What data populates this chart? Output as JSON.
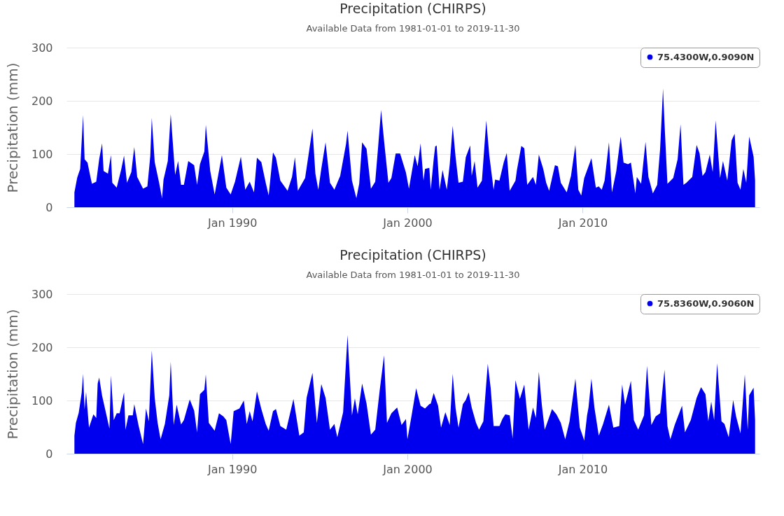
{
  "chart_data": [
    {
      "type": "area",
      "title": "Precipitation (CHIRPS)",
      "subtitle": "Available Data from 1981-01-01 to 2019-11-30",
      "ylabel": "Precipitation (mm)",
      "xlim": [
        "1980-07-20",
        "2020-02-01"
      ],
      "xticks": [
        {
          "value": "1990-01",
          "label": "Jan 1990"
        },
        {
          "value": "2000-01",
          "label": "Jan 2000"
        },
        {
          "value": "2010-01",
          "label": "Jan 2010"
        }
      ],
      "ylim": [
        0,
        300
      ],
      "yticks": [
        0,
        100,
        200,
        300
      ],
      "grid": "y",
      "legend": "top right",
      "series": [
        {
          "name": "75.4300W,0.9090N",
          "color": "#0000ee",
          "x": [
            "1981-01",
            "1981-03",
            "1981-05",
            "1981-07",
            "1981-08",
            "1981-10",
            "1981-12",
            "1982-01",
            "1982-04",
            "1982-06",
            "1982-08",
            "1982-09",
            "1982-12",
            "1983-02",
            "1983-03",
            "1983-06",
            "1983-09",
            "1983-11",
            "1984-01",
            "1984-04",
            "1984-06",
            "1984-08",
            "1984-12",
            "1985-03",
            "1985-05",
            "1985-06",
            "1985-08",
            "1985-11",
            "1986-01",
            "1986-02",
            "1986-05",
            "1986-07",
            "1986-10",
            "1986-12",
            "1987-02",
            "1987-04",
            "1987-07",
            "1987-11",
            "1988-01",
            "1988-03",
            "1988-06",
            "1988-07",
            "1988-10",
            "1989-01",
            "1989-04",
            "1989-06",
            "1989-09",
            "1989-12",
            "1990-03",
            "1990-07",
            "1990-10",
            "1991-01",
            "1991-04",
            "1991-06",
            "1991-09",
            "1991-12",
            "1992-02",
            "1992-05",
            "1992-07",
            "1992-10",
            "1993-03",
            "1993-06",
            "1993-08",
            "1993-10",
            "1994-03",
            "1994-08",
            "1994-10",
            "1994-12",
            "1995-02",
            "1995-05",
            "1995-08",
            "1995-11",
            "1996-03",
            "1996-07",
            "1996-08",
            "1996-11",
            "1997-02",
            "1997-04",
            "1997-06",
            "1997-09",
            "1997-12",
            "1998-03",
            "1998-05",
            "1998-07",
            "1998-09",
            "1998-12",
            "1999-02",
            "1999-05",
            "1999-08",
            "1999-12",
            "2000-02",
            "2000-04",
            "2000-06",
            "2000-08",
            "2000-10",
            "2000-12",
            "2001-01",
            "2001-04",
            "2001-05",
            "2001-07",
            "2001-08",
            "2001-09",
            "2001-11",
            "2002-01",
            "2002-04",
            "2002-06",
            "2002-08",
            "2002-10",
            "2002-12",
            "2003-03",
            "2003-05",
            "2003-08",
            "2003-09",
            "2003-11",
            "2004-01",
            "2004-04",
            "2004-07",
            "2004-09",
            "2004-12",
            "2005-01",
            "2005-04",
            "2005-07",
            "2005-09",
            "2005-11",
            "2006-03",
            "2006-04",
            "2006-07",
            "2006-09",
            "2006-11",
            "2007-03",
            "2007-05",
            "2007-07",
            "2007-10",
            "2007-12",
            "2008-02",
            "2008-06",
            "2008-08",
            "2008-10",
            "2009-02",
            "2009-05",
            "2009-08",
            "2009-10",
            "2009-12",
            "2010-02",
            "2010-07",
            "2010-10",
            "2010-12",
            "2011-02",
            "2011-04",
            "2011-07",
            "2011-09",
            "2011-12",
            "2012-03",
            "2012-05",
            "2012-08",
            "2012-10",
            "2013-01",
            "2013-02",
            "2013-05",
            "2013-08",
            "2013-10",
            "2014-01",
            "2014-04",
            "2014-06",
            "2014-08",
            "2014-09",
            "2014-11",
            "2015-03",
            "2015-06",
            "2015-08",
            "2015-10",
            "2015-12",
            "2016-04",
            "2016-07",
            "2016-09",
            "2016-11",
            "2017-01",
            "2017-04",
            "2017-06",
            "2017-08",
            "2017-11",
            "2018-01",
            "2018-04",
            "2018-07",
            "2018-09",
            "2018-11",
            "2019-01",
            "2019-03",
            "2019-05",
            "2019-07",
            "2019-10",
            "2019-11"
          ],
          "values": [
            28,
            56,
            72,
            173,
            90,
            84,
            57,
            44,
            48,
            90,
            120,
            68,
            63,
            98,
            46,
            37,
            70,
            97,
            46,
            66,
            113,
            57,
            35,
            39,
            96,
            168,
            85,
            46,
            17,
            52,
            87,
            175,
            61,
            87,
            42,
            42,
            87,
            79,
            42,
            81,
            105,
            155,
            68,
            24,
            68,
            98,
            37,
            24,
            48,
            95,
            33,
            48,
            28,
            93,
            85,
            46,
            22,
            103,
            93,
            50,
            31,
            57,
            94,
            31,
            55,
            148,
            63,
            33,
            72,
            122,
            46,
            33,
            59,
            119,
            144,
            50,
            17,
            44,
            122,
            110,
            35,
            48,
            114,
            183,
            125,
            46,
            55,
            101,
            101,
            65,
            35,
            66,
            98,
            77,
            120,
            50,
            72,
            74,
            33,
            90,
            114,
            116,
            33,
            70,
            33,
            81,
            153,
            94,
            46,
            48,
            94,
            116,
            59,
            87,
            37,
            50,
            163,
            98,
            33,
            52,
            50,
            85,
            102,
            31,
            50,
            70,
            115,
            111,
            42,
            57,
            42,
            99,
            72,
            46,
            31,
            79,
            77,
            46,
            28,
            59,
            117,
            33,
            22,
            55,
            92,
            37,
            39,
            33,
            50,
            122,
            28,
            68,
            133,
            84,
            81,
            84,
            26,
            57,
            44,
            123,
            57,
            26,
            42,
            109,
            223,
            157,
            44,
            55,
            90,
            156,
            42,
            46,
            57,
            117,
            101,
            59,
            66,
            99,
            66,
            163,
            55,
            87,
            50,
            126,
            138,
            46,
            33,
            72,
            46,
            133,
            95,
            50
          ]
        }
      ]
    },
    {
      "type": "area",
      "title": "Precipitation (CHIRPS)",
      "subtitle": "Available Data from 1981-01-01 to 2019-11-30",
      "ylabel": "Precipitation (mm)",
      "xlim": [
        "1980-07-20",
        "2020-02-01"
      ],
      "xticks": [
        {
          "value": "1990-01",
          "label": "Jan 1990"
        },
        {
          "value": "2000-01",
          "label": "Jan 2000"
        },
        {
          "value": "2010-01",
          "label": "Jan 2010"
        }
      ],
      "ylim": [
        0,
        300
      ],
      "yticks": [
        0,
        100,
        200,
        300
      ],
      "grid": "y",
      "legend": "top right",
      "series": [
        {
          "name": "75.8360W,0.9060N",
          "color": "#0000ee",
          "x": [
            "1981-01",
            "1981-02",
            "1981-04",
            "1981-06",
            "1981-07",
            "1981-08",
            "1981-09",
            "1981-11",
            "1982-02",
            "1982-04",
            "1982-05",
            "1982-06",
            "1982-08",
            "1982-11",
            "1983-01",
            "1983-02",
            "1983-04",
            "1983-06",
            "1983-08",
            "1983-11",
            "1983-12",
            "1984-02",
            "1984-05",
            "1984-06",
            "1984-09",
            "1984-12",
            "1985-02",
            "1985-04",
            "1985-06",
            "1985-08",
            "1985-10",
            "1985-12",
            "1986-03",
            "1986-06",
            "1986-07",
            "1986-09",
            "1986-11",
            "1987-02",
            "1987-04",
            "1987-08",
            "1987-11",
            "1988-01",
            "1988-03",
            "1988-06",
            "1988-07",
            "1988-09",
            "1989-01",
            "1989-04",
            "1989-07",
            "1989-09",
            "1989-12",
            "1990-02",
            "1990-06",
            "1990-09",
            "1990-11",
            "1991-01",
            "1991-03",
            "1991-06",
            "1991-09",
            "1991-12",
            "1992-02",
            "1992-05",
            "1992-07",
            "1992-10",
            "1993-02",
            "1993-07",
            "1993-11",
            "1994-02",
            "1994-04",
            "1994-08",
            "1994-11",
            "1995-02",
            "1995-05",
            "1995-08",
            "1995-11",
            "1996-01",
            "1996-05",
            "1996-08",
            "1996-11",
            "1997-01",
            "1997-03",
            "1997-06",
            "1997-09",
            "1997-12",
            "1998-03",
            "1998-06",
            "1998-09",
            "1998-11",
            "1999-02",
            "1999-06",
            "1999-09",
            "1999-12",
            "2000-01",
            "2000-04",
            "2000-07",
            "2000-08",
            "2000-10",
            "2001-01",
            "2001-04",
            "2001-05",
            "2001-07",
            "2001-10",
            "2001-12",
            "2002-03",
            "2002-06",
            "2002-08",
            "2002-10",
            "2002-12",
            "2003-03",
            "2003-05",
            "2003-07",
            "2003-09",
            "2003-12",
            "2004-02",
            "2004-05",
            "2004-08",
            "2004-10",
            "2004-12",
            "2005-04",
            "2005-06",
            "2005-08",
            "2005-11",
            "2006-01",
            "2006-03",
            "2006-06",
            "2006-09",
            "2006-12",
            "2007-03",
            "2007-05",
            "2007-07",
            "2007-09",
            "2007-11",
            "2008-04",
            "2008-07",
            "2008-10",
            "2009-01",
            "2009-04",
            "2009-08",
            "2009-11",
            "2010-02",
            "2010-04",
            "2010-05",
            "2010-07",
            "2010-09",
            "2010-12",
            "2011-03",
            "2011-07",
            "2011-10",
            "2012-02",
            "2012-04",
            "2012-06",
            "2012-10",
            "2012-12",
            "2013-03",
            "2013-07",
            "2013-09",
            "2013-12",
            "2014-03",
            "2014-06",
            "2014-09",
            "2014-11",
            "2015-01",
            "2015-04",
            "2015-09",
            "2015-11",
            "2016-03",
            "2016-07",
            "2016-10",
            "2017-01",
            "2017-03",
            "2017-05",
            "2017-07",
            "2017-09",
            "2017-12",
            "2018-02",
            "2018-05",
            "2018-08",
            "2018-10",
            "2019-01",
            "2019-04",
            "2019-06",
            "2019-07",
            "2019-10",
            "2019-11"
          ],
          "values": [
            34,
            58,
            77,
            114,
            150,
            83,
            116,
            49,
            74,
            67,
            132,
            143,
            109,
            72,
            47,
            147,
            63,
            76,
            76,
            115,
            45,
            72,
            72,
            93,
            52,
            18,
            85,
            61,
            194,
            105,
            58,
            27,
            56,
            110,
            173,
            54,
            92,
            55,
            63,
            102,
            81,
            40,
            112,
            120,
            149,
            58,
            43,
            76,
            70,
            63,
            18,
            80,
            85,
            100,
            56,
            80,
            61,
            117,
            84,
            56,
            43,
            80,
            84,
            52,
            45,
            103,
            34,
            40,
            105,
            152,
            58,
            131,
            105,
            45,
            56,
            31,
            78,
            223,
            72,
            104,
            74,
            132,
            94,
            36,
            45,
            118,
            185,
            58,
            76,
            87,
            54,
            65,
            27,
            74,
            123,
            112,
            90,
            85,
            93,
            94,
            114,
            90,
            49,
            78,
            54,
            150,
            85,
            49,
            93,
            101,
            115,
            87,
            58,
            45,
            61,
            169,
            123,
            52,
            52,
            65,
            74,
            72,
            29,
            138,
            103,
            130,
            45,
            87,
            67,
            154,
            92,
            45,
            84,
            74,
            58,
            27,
            61,
            141,
            49,
            25,
            72,
            87,
            141,
            87,
            34,
            56,
            92,
            49,
            52,
            130,
            92,
            137,
            63,
            45,
            72,
            165,
            54,
            70,
            76,
            158,
            52,
            27,
            54,
            90,
            40,
            63,
            105,
            125,
            112,
            61,
            98,
            63,
            170,
            61,
            56,
            31,
            101,
            70,
            38,
            149,
            45,
            110,
            124,
            63
          ]
        }
      ]
    }
  ]
}
